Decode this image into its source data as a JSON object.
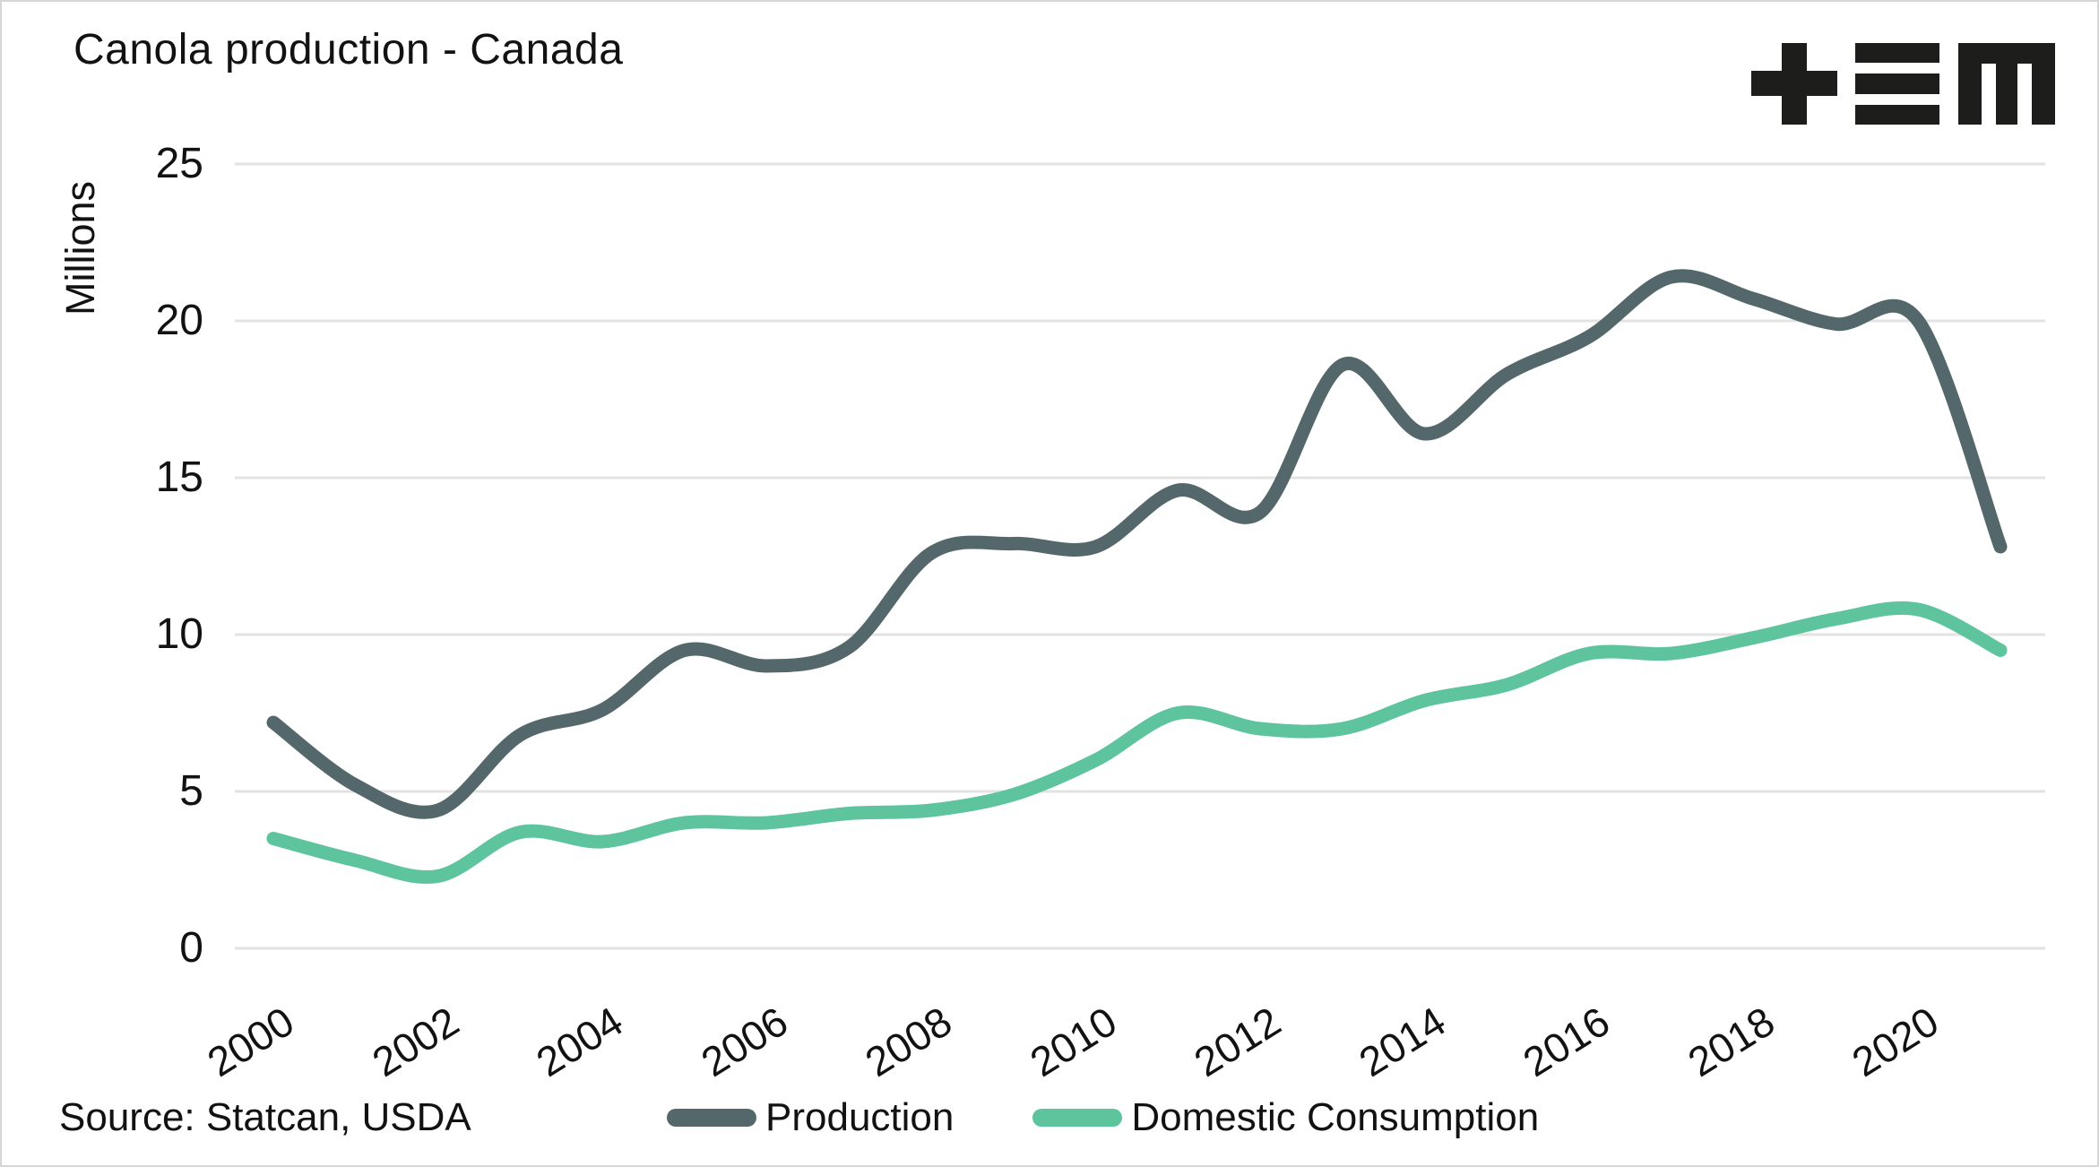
{
  "meta": {
    "title": "Canola production - Canada",
    "source_note": "Source: Statcan, USDA",
    "logo_icon": "tem-logo"
  },
  "colors": {
    "production": "#54686c",
    "domestic_consumption": "#5ec49d",
    "gridline": "#e3e3e3",
    "text": "#121212",
    "logo": "#1d1d1b",
    "background": "#ffffff",
    "frame_border": "#d6d6d6"
  },
  "chart_data": {
    "type": "line",
    "title": "Canola production - Canada",
    "xlabel": "",
    "ylabel": "Millions",
    "ylim": [
      0,
      25
    ],
    "y_ticks": [
      0,
      5,
      10,
      15,
      20,
      25
    ],
    "y_tick_labels": [
      "0",
      "5",
      "10",
      "15",
      "20",
      "25"
    ],
    "x": [
      2000,
      2001,
      2002,
      2003,
      2004,
      2005,
      2006,
      2007,
      2008,
      2009,
      2010,
      2011,
      2012,
      2013,
      2014,
      2015,
      2016,
      2017,
      2018,
      2019,
      2020,
      2021
    ],
    "x_tick_labels": [
      "2000",
      "2002",
      "2004",
      "2006",
      "2008",
      "2010",
      "2012",
      "2014",
      "2016",
      "2018",
      "2020"
    ],
    "grid": "horizontal gridlines only",
    "legend_position": "bottom",
    "line_style": "smoothed, round caps, width 15px",
    "series": [
      {
        "name": "Production",
        "color": "#54686c",
        "values": [
          7.2,
          5.2,
          4.4,
          6.8,
          7.6,
          9.5,
          9.0,
          9.6,
          12.6,
          12.9,
          12.8,
          14.6,
          13.9,
          18.6,
          16.4,
          18.3,
          19.5,
          21.4,
          20.7,
          19.9,
          20.0,
          12.8
        ]
      },
      {
        "name": "Domestic Consumption",
        "color": "#5ec49d",
        "values": [
          3.5,
          2.8,
          2.3,
          3.7,
          3.4,
          4.0,
          4.0,
          4.3,
          4.4,
          4.9,
          6.0,
          7.5,
          7.0,
          7.0,
          7.9,
          8.4,
          9.4,
          9.4,
          9.9,
          10.5,
          10.8,
          9.5
        ]
      }
    ]
  }
}
